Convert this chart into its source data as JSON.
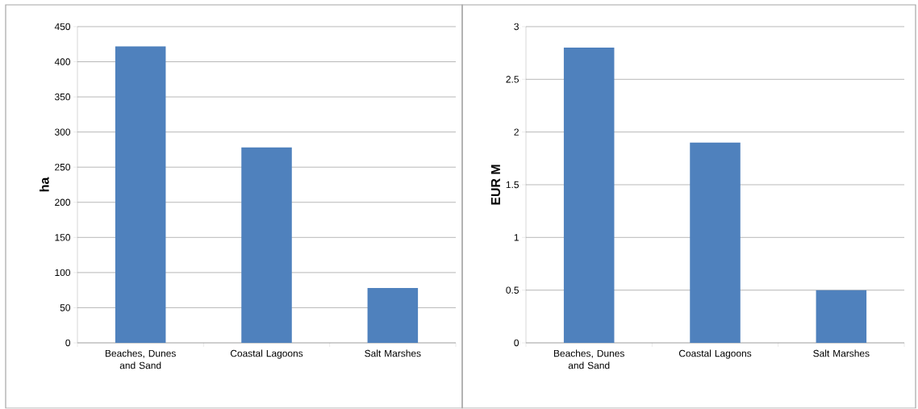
{
  "chart_data": [
    {
      "type": "bar",
      "ylabel": "ha",
      "categories": [
        "Beaches, Dunes and Sand",
        "Coastal Lagoons",
        "Salt Marshes"
      ],
      "values": [
        422,
        278,
        78
      ],
      "color": "#4f81bd",
      "ylim": [
        0,
        450
      ],
      "yticks": [
        0,
        50,
        100,
        150,
        200,
        250,
        300,
        350,
        400,
        450
      ],
      "grid": "y"
    },
    {
      "type": "bar",
      "ylabel": "EUR M",
      "categories": [
        "Beaches, Dunes and Sand",
        "Coastal Lagoons",
        "Salt Marshes"
      ],
      "values": [
        2.8,
        1.9,
        0.5
      ],
      "color": "#4f81bd",
      "ylim": [
        0,
        3
      ],
      "yticks": [
        0,
        0.5,
        1,
        1.5,
        2,
        2.5,
        3
      ],
      "grid": "y"
    }
  ]
}
